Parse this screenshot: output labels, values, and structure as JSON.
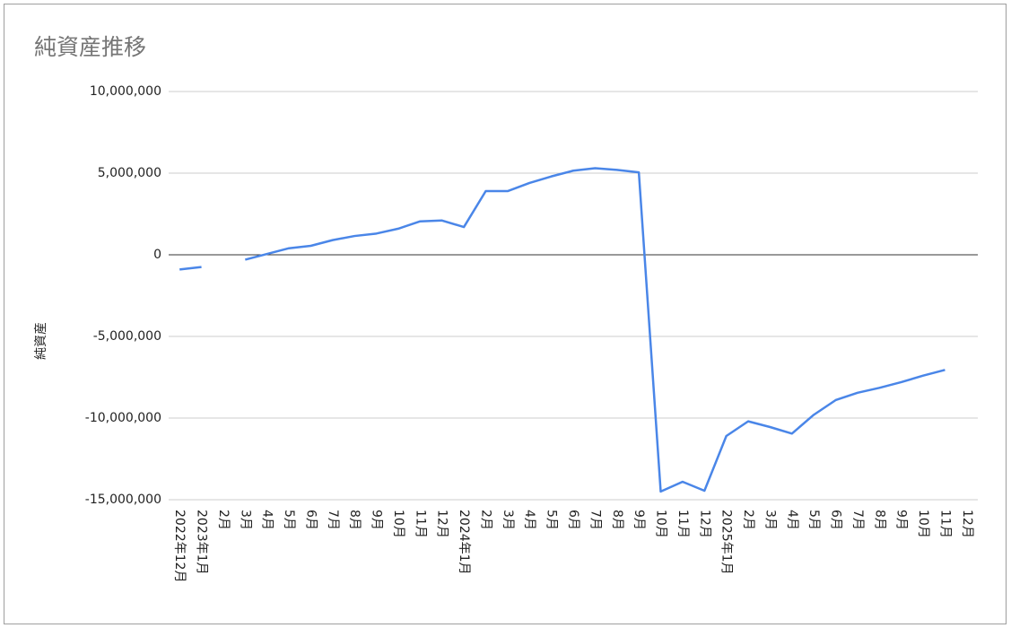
{
  "chart_data": {
    "type": "line",
    "title": "純資産推移",
    "y_label": "純資産",
    "categories": [
      "2022年12月",
      "2023年1月",
      "2月",
      "3月",
      "4月",
      "5月",
      "6月",
      "7月",
      "8月",
      "9月",
      "10月",
      "11月",
      "12月",
      "2024年1月",
      "2月",
      "3月",
      "4月",
      "5月",
      "6月",
      "7月",
      "8月",
      "9月",
      "10月",
      "11月",
      "12月",
      "2025年1月",
      "2月",
      "3月",
      "4月",
      "5月",
      "6月",
      "7月",
      "8月",
      "9月",
      "10月",
      "11月",
      "12月"
    ],
    "series": [
      {
        "name": "純資産",
        "color": "#4a86e8",
        "values": [
          -900000,
          -750000,
          null,
          -300000,
          50000,
          400000,
          550000,
          900000,
          1150000,
          1300000,
          1600000,
          2050000,
          2100000,
          1700000,
          3900000,
          3900000,
          4400000,
          4800000,
          5150000,
          5300000,
          5200000,
          5050000,
          -14500000,
          -13900000,
          -14450000,
          -11100000,
          -10200000,
          -10550000,
          -10950000,
          -9800000,
          -8900000,
          -8450000,
          -8150000,
          -7800000,
          -7400000,
          -7050000,
          null
        ]
      }
    ],
    "ylim": [
      -15000000,
      10000000
    ],
    "yticks": [
      {
        "value": -15000000,
        "label": "-15,000,000"
      },
      {
        "value": -10000000,
        "label": "-10,000,000"
      },
      {
        "value": -5000000,
        "label": "-5,000,000"
      },
      0,
      {
        "value": 5000000,
        "label": "5,000,000"
      },
      {
        "value": 10000000,
        "label": "10,000,000"
      }
    ],
    "grid": true
  }
}
